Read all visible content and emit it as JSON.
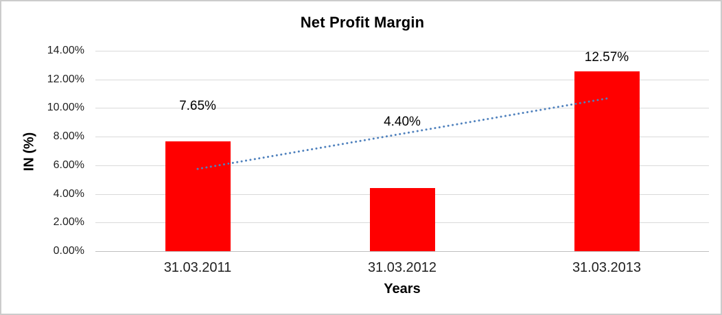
{
  "chart_data": {
    "type": "bar",
    "title": "Net Profit Margin",
    "xlabel": "Years",
    "ylabel": "IN (%)",
    "categories": [
      "31.03.2011",
      "31.03.2012",
      "31.03.2013"
    ],
    "values": [
      7.65,
      4.4,
      12.57
    ],
    "data_labels": [
      "7.65%",
      "4.40%",
      "12.57%"
    ],
    "yticks": [
      "0.00%",
      "2.00%",
      "4.00%",
      "6.00%",
      "8.00%",
      "10.00%",
      "12.00%",
      "14.00%"
    ],
    "ytick_values": [
      0,
      2,
      4,
      6,
      8,
      10,
      12,
      14
    ],
    "ylim": [
      0,
      14
    ],
    "grid": true,
    "legend": "none",
    "bar_color": "#ff0000",
    "gridline_color": "#d9d9d9",
    "axis_line_color": "#bfbfbf",
    "text_color": "#1f1f1f",
    "trendline": {
      "type": "linear",
      "style": "dotted",
      "color": "#4f81bd"
    }
  }
}
